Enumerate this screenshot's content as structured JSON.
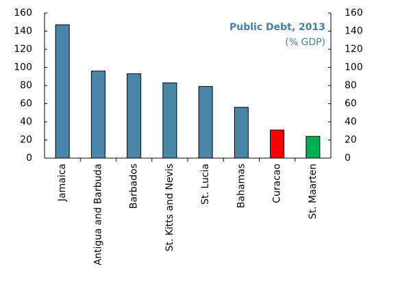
{
  "chart_data": {
    "type": "bar",
    "title": "Public Debt, 2013",
    "subtitle": "(% GDP)",
    "categories": [
      "Jamaica",
      "Antigua and Barbuda",
      "Barbados",
      "St. Kitts and Nevis",
      "St. Lucia",
      "Bahamas",
      "Curacao",
      "St. Maarten"
    ],
    "values": [
      147,
      96,
      93,
      83,
      79,
      56,
      31,
      24
    ],
    "colors": [
      "#4a86a8",
      "#4a86a8",
      "#4a86a8",
      "#4a86a8",
      "#4a86a8",
      "#4a86a8",
      "#ff0000",
      "#00b050"
    ],
    "title_color": "#4a7fa8",
    "ylim": [
      0,
      160
    ],
    "yticks": [
      0,
      20,
      40,
      60,
      80,
      100,
      120,
      140,
      160
    ],
    "y2lim": [
      0,
      160
    ],
    "y2ticks": [
      0,
      20,
      40,
      60,
      80,
      100,
      120,
      140,
      160
    ],
    "grid": false
  }
}
